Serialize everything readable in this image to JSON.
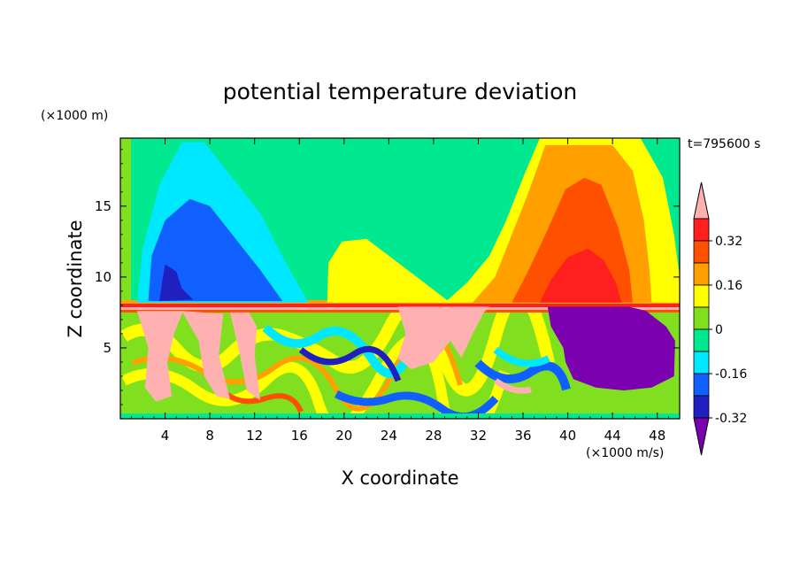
{
  "chart_data": {
    "type": "heatmap",
    "title": "potential temperature deviation",
    "xlabel": "X coordinate",
    "ylabel": "Z coordinate",
    "x_unit_label": "(×1000 m/s)",
    "y_unit_label": "(×1000 m)",
    "time_label": "t=795600 s",
    "xlim": [
      0,
      50
    ],
    "ylim": [
      0,
      19.8
    ],
    "x_ticks": [
      4,
      8,
      12,
      16,
      20,
      24,
      28,
      32,
      36,
      40,
      44,
      48
    ],
    "y_ticks": [
      5,
      10,
      15
    ],
    "colorbar": {
      "labels": [
        "0.32",
        "0.16",
        "0",
        "-0.16",
        "-0.32"
      ],
      "label_values": [
        0.32,
        0.16,
        0,
        -0.16,
        -0.32
      ],
      "bounds": [
        -0.4,
        -0.32,
        -0.24,
        -0.16,
        -0.08,
        0,
        0.08,
        0.16,
        0.24,
        0.32,
        0.4
      ],
      "colors": [
        "#7b00b0",
        "#2020c0",
        "#1060ff",
        "#00e8ff",
        "#00e890",
        "#80e020",
        "#ffff00",
        "#ffa000",
        "#ff5000",
        "#ff1f1f",
        "#ffb0b0"
      ],
      "extend": "both"
    },
    "regions": [
      {
        "name": "upper-left-cyan",
        "level": -0.16,
        "points": [
          [
            1.5,
            8.2
          ],
          [
            2,
            12
          ],
          [
            3.5,
            16.5
          ],
          [
            5.5,
            19.5
          ],
          [
            7.5,
            19.5
          ],
          [
            10,
            17
          ],
          [
            12.5,
            14.5
          ],
          [
            14.8,
            11
          ],
          [
            16.8,
            8.2
          ]
        ]
      },
      {
        "name": "upper-left-blue",
        "level": -0.24,
        "points": [
          [
            2.5,
            8.3
          ],
          [
            2.8,
            11.5
          ],
          [
            4,
            14
          ],
          [
            6.2,
            15.5
          ],
          [
            8,
            15
          ],
          [
            10.5,
            12.5
          ],
          [
            12.5,
            10.5
          ],
          [
            14.5,
            8.3
          ]
        ]
      },
      {
        "name": "upper-left-darkblue",
        "level": -0.32,
        "points": [
          [
            3.5,
            8.3
          ],
          [
            3.7,
            9.5
          ],
          [
            4,
            10.9
          ],
          [
            5,
            10.4
          ],
          [
            5.5,
            9.2
          ],
          [
            6.5,
            8.4
          ]
        ]
      },
      {
        "name": "upper-right-green",
        "level": 0.08,
        "points": [
          [
            29,
            8.2
          ],
          [
            31,
            9.6
          ],
          [
            33,
            11.5
          ],
          [
            34.5,
            14
          ],
          [
            36,
            17
          ],
          [
            37.5,
            19.8
          ],
          [
            46.5,
            19.8
          ],
          [
            48.5,
            17
          ],
          [
            49.5,
            13
          ],
          [
            50,
            10
          ],
          [
            50,
            8.2
          ]
        ]
      },
      {
        "name": "upper-right-yellow",
        "level": 0.16,
        "points": [
          [
            31.5,
            8.2
          ],
          [
            33.5,
            10
          ],
          [
            35,
            13
          ],
          [
            36.5,
            16
          ],
          [
            38,
            19.3
          ],
          [
            44,
            19.3
          ],
          [
            45.8,
            17.5
          ],
          [
            46.8,
            14
          ],
          [
            47.3,
            10.5
          ],
          [
            47.5,
            8.2
          ]
        ]
      },
      {
        "name": "upper-right-orange",
        "level": 0.24,
        "points": [
          [
            35,
            8.2
          ],
          [
            36.5,
            10.5
          ],
          [
            38,
            13
          ],
          [
            39.8,
            16.2
          ],
          [
            41.5,
            17
          ],
          [
            43,
            16.5
          ],
          [
            44.5,
            13.5
          ],
          [
            45.5,
            10.5
          ],
          [
            45.8,
            8.2
          ]
        ]
      },
      {
        "name": "upper-right-red",
        "level": 0.32,
        "points": [
          [
            37.5,
            8.2
          ],
          [
            38.5,
            9.8
          ],
          [
            40,
            11.4
          ],
          [
            41.8,
            12
          ],
          [
            43.2,
            11.2
          ],
          [
            44.3,
            9.6
          ],
          [
            44.8,
            8.2
          ]
        ]
      },
      {
        "name": "upper-mid-green",
        "level": 0.08,
        "points": [
          [
            18.5,
            8.2
          ],
          [
            18.6,
            11
          ],
          [
            19.8,
            12.5
          ],
          [
            22,
            12.7
          ],
          [
            24,
            11.5
          ],
          [
            26.5,
            10
          ],
          [
            28.5,
            8.8
          ],
          [
            29.5,
            8.2
          ]
        ]
      },
      {
        "name": "lower-right-purple",
        "level": -0.4,
        "points": [
          [
            38.2,
            7.9
          ],
          [
            38.5,
            6.5
          ],
          [
            39.6,
            5
          ],
          [
            39.8,
            4
          ],
          [
            40.5,
            2.8
          ],
          [
            42.5,
            2.2
          ],
          [
            45,
            2
          ],
          [
            47.5,
            2.2
          ],
          [
            49.5,
            3
          ],
          [
            49.6,
            5.5
          ],
          [
            48.8,
            6.5
          ],
          [
            47,
            7.6
          ],
          [
            45.5,
            7.9
          ]
        ]
      },
      {
        "name": "lower-center-pink",
        "level": 0.4,
        "points": [
          [
            24.8,
            7.9
          ],
          [
            25.5,
            6
          ],
          [
            24.8,
            4.3
          ],
          [
            26,
            3.5
          ],
          [
            28,
            4
          ],
          [
            29.5,
            5.5
          ],
          [
            30.5,
            4.3
          ],
          [
            31.5,
            6
          ],
          [
            32.5,
            7.5
          ],
          [
            33,
            7.9
          ]
        ]
      },
      {
        "name": "lower-left-pink-1",
        "level": 0.4,
        "points": [
          [
            1.5,
            7.6
          ],
          [
            2.5,
            5
          ],
          [
            2.2,
            2.2
          ],
          [
            3.2,
            1.2
          ],
          [
            4.6,
            1.6
          ],
          [
            4.2,
            4
          ],
          [
            4.8,
            6
          ],
          [
            5.6,
            7.6
          ]
        ]
      },
      {
        "name": "lower-left-pink-2",
        "level": 0.4,
        "points": [
          [
            5.5,
            7.6
          ],
          [
            7,
            5.5
          ],
          [
            7.5,
            3
          ],
          [
            8.6,
            1.6
          ],
          [
            9.8,
            1.4
          ],
          [
            8.8,
            4.5
          ],
          [
            9.2,
            7.4
          ]
        ]
      },
      {
        "name": "lower-left-pink-3",
        "level": 0.4,
        "points": [
          [
            9.8,
            7.5
          ],
          [
            10.7,
            4.5
          ],
          [
            11.3,
            2
          ],
          [
            12.5,
            1.3
          ],
          [
            12,
            4.5
          ],
          [
            12.2,
            6.5
          ],
          [
            11.5,
            7.5
          ]
        ]
      }
    ]
  }
}
